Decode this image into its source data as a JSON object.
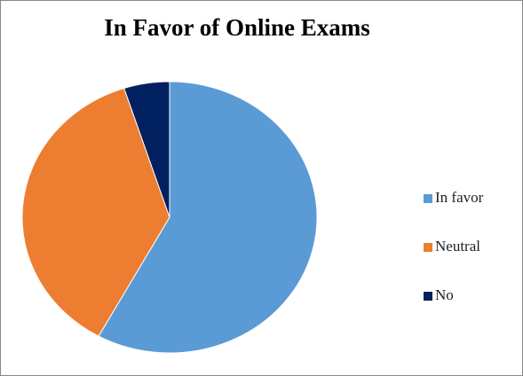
{
  "chart_data": {
    "type": "pie",
    "title": "In Favor of Online Exams",
    "categories": [
      "In favor",
      "Neutral",
      "No"
    ],
    "values": [
      58,
      37,
      5
    ],
    "colors": [
      "#5b9bd5",
      "#ed7d31",
      "#002060"
    ],
    "legend": "right"
  }
}
